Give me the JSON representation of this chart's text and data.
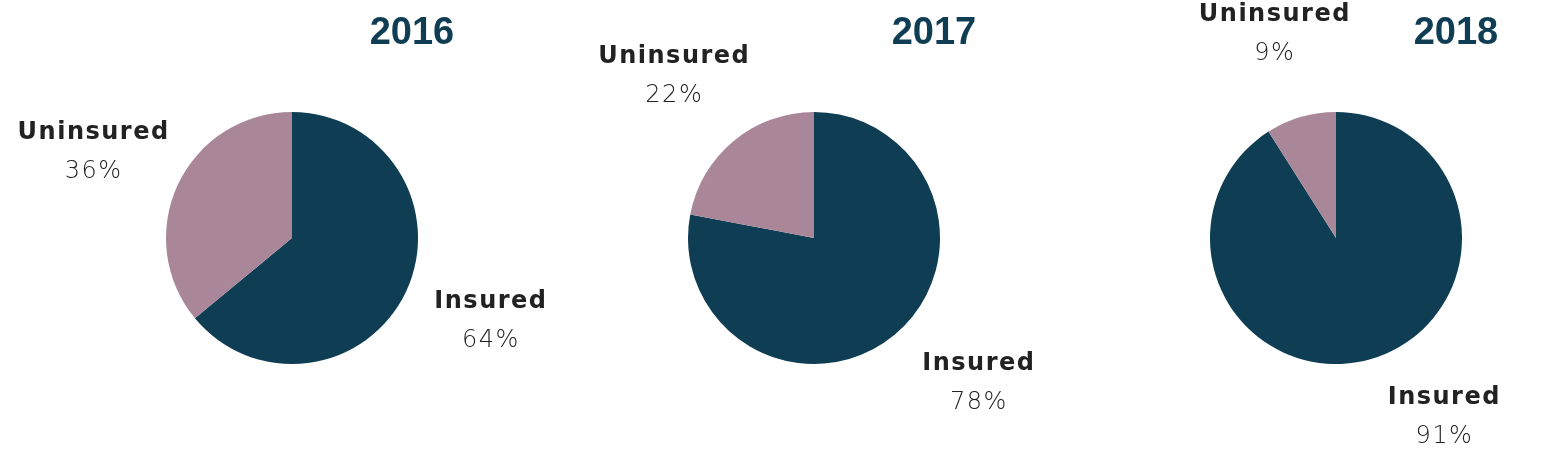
{
  "chart_data": [
    {
      "type": "pie",
      "title": "2016",
      "categories": [
        "Insured",
        "Uninsured"
      ],
      "values": [
        64,
        36
      ],
      "colors": [
        "#0e3d54",
        "#a98799"
      ],
      "value_labels": [
        "64%",
        "36%"
      ]
    },
    {
      "type": "pie",
      "title": "2017",
      "categories": [
        "Insured",
        "Uninsured"
      ],
      "values": [
        78,
        22
      ],
      "colors": [
        "#0e3d54",
        "#a98799"
      ],
      "value_labels": [
        "78%",
        "22%"
      ]
    },
    {
      "type": "pie",
      "title": "2018",
      "categories": [
        "Insured",
        "Uninsured"
      ],
      "values": [
        91,
        9
      ],
      "colors": [
        "#0e3d54",
        "#a98799"
      ],
      "value_labels": [
        "91%",
        "9%"
      ]
    }
  ]
}
